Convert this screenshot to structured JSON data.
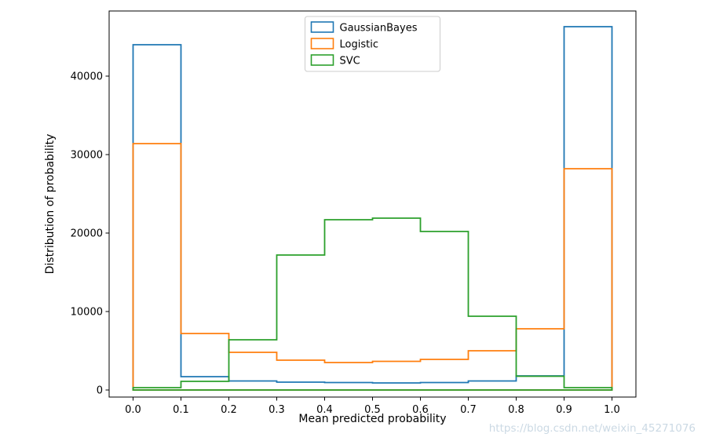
{
  "chart_data": {
    "type": "histogram-step",
    "title": "",
    "xlabel": "Mean predicted probability",
    "ylabel": "Distribution of probability",
    "grid": false,
    "legend_position": "upper center",
    "bin_edges": [
      0.0,
      0.1,
      0.2,
      0.3,
      0.4,
      0.5,
      0.6,
      0.7,
      0.8,
      0.9,
      1.0
    ],
    "xlim": [
      -0.05,
      1.05
    ],
    "ylim": [
      -900,
      48300
    ],
    "xticks": [
      {
        "v": 0.0,
        "label": "0.0"
      },
      {
        "v": 0.1,
        "label": "0.1"
      },
      {
        "v": 0.2,
        "label": "0.2"
      },
      {
        "v": 0.3,
        "label": "0.3"
      },
      {
        "v": 0.4,
        "label": "0.4"
      },
      {
        "v": 0.5,
        "label": "0.5"
      },
      {
        "v": 0.6,
        "label": "0.6"
      },
      {
        "v": 0.7,
        "label": "0.7"
      },
      {
        "v": 0.8,
        "label": "0.8"
      },
      {
        "v": 0.9,
        "label": "0.9"
      },
      {
        "v": 1.0,
        "label": "1.0"
      }
    ],
    "yticks": [
      {
        "v": 0,
        "label": "0"
      },
      {
        "v": 10000,
        "label": "10000"
      },
      {
        "v": 20000,
        "label": "20000"
      },
      {
        "v": 30000,
        "label": "30000"
      },
      {
        "v": 40000,
        "label": "40000"
      }
    ],
    "series": [
      {
        "name": "GaussianBayes",
        "color": "#1f77b4",
        "values": [
          44000,
          1700,
          1150,
          1000,
          950,
          900,
          950,
          1150,
          1800,
          46300
        ]
      },
      {
        "name": "Logistic",
        "color": "#ff7f0e",
        "values": [
          31400,
          7200,
          4800,
          3800,
          3500,
          3650,
          3900,
          5000,
          7800,
          28200
        ]
      },
      {
        "name": "SVC",
        "color": "#2ca02c",
        "values": [
          300,
          1100,
          6400,
          17200,
          21700,
          21900,
          20200,
          9400,
          1750,
          300
        ]
      }
    ]
  },
  "watermark": {
    "text": "https://blog.csdn.net/weixin_45271076",
    "color": "#cbd9e4"
  }
}
